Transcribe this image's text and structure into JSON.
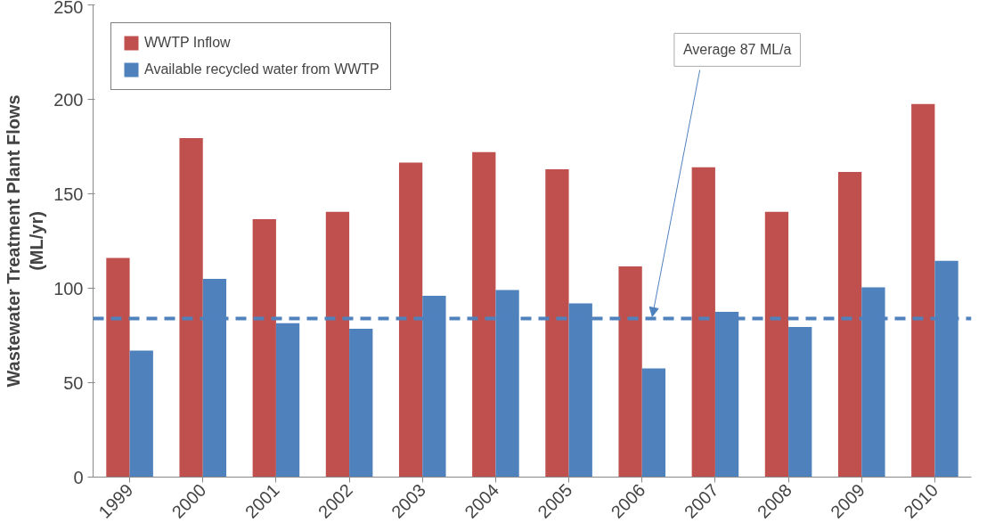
{
  "chart_data": {
    "type": "bar",
    "ylabel": "Wastewater Treatment Plant Flows\n(ML/yr)",
    "categories": [
      "1999",
      "2000",
      "2001",
      "2002",
      "2003",
      "2004",
      "2005",
      "2006",
      "2007",
      "2008",
      "2009",
      "2010"
    ],
    "series": [
      {
        "name": "WWTP Inflow",
        "color": "#c0504d",
        "values": [
          116,
          179.5,
          136.5,
          140.5,
          166.5,
          172,
          163,
          111.5,
          164,
          140.5,
          161.5,
          197.5
        ]
      },
      {
        "name": "Available recycled water from WWTP",
        "color": "#4f81bd",
        "values": [
          67,
          105,
          81.5,
          78.5,
          96,
          99,
          92,
          57.5,
          87.5,
          79.5,
          100.5,
          114.5
        ]
      }
    ],
    "ylim": [
      0,
      250
    ],
    "yticks": [
      0,
      50,
      100,
      150,
      200,
      250
    ],
    "grid": false,
    "legend": "top left",
    "ref_lines": [
      {
        "axis": "y",
        "value": 84,
        "label": "Average 87 ML/a",
        "color": "#4f81bd",
        "line_style": "dashed"
      }
    ]
  }
}
